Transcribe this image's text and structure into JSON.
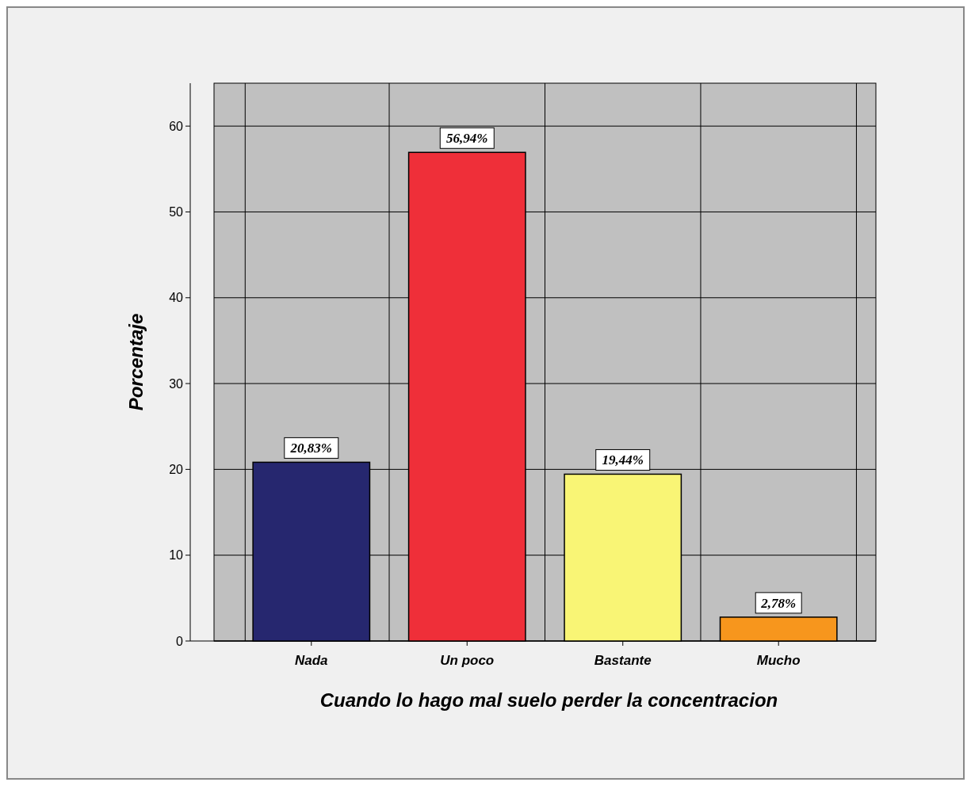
{
  "chart_data": {
    "type": "bar",
    "xlabel": "Cuando lo hago mal suelo perder la concentracion",
    "ylabel": "Porcentaje",
    "categories": [
      "Nada",
      "Un poco",
      "Bastante",
      "Mucho"
    ],
    "values": [
      20.83,
      56.94,
      19.44,
      2.78
    ],
    "colors": [
      "#26276f",
      "#ef2f39",
      "#f9f575",
      "#f7961d"
    ],
    "value_labels": [
      "20,83%",
      "56,94%",
      "19,44%",
      "2,78%"
    ],
    "ylim": [
      0,
      65
    ],
    "yticks": [
      0,
      10,
      20,
      30,
      40,
      50,
      60
    ],
    "grid": true
  }
}
